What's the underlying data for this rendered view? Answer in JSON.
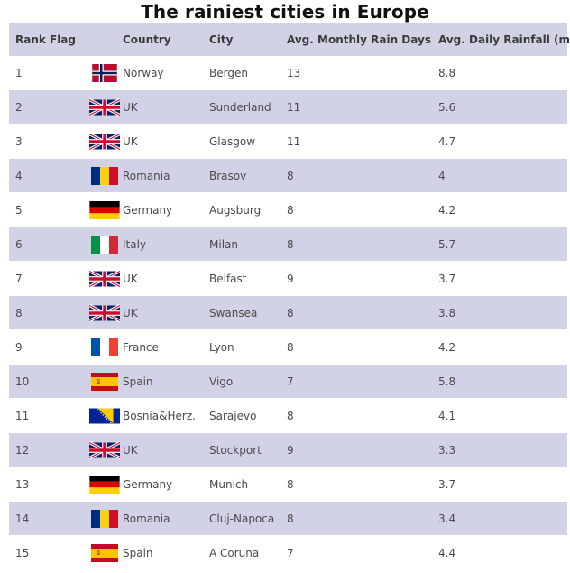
{
  "title": "The rainiest cities in Europe",
  "headers": {
    "rank": "Rank",
    "flag": "Flag",
    "country": "Country",
    "city": "City",
    "days": "Avg. Monthly Rain Days",
    "rainfall": "Avg. Daily Rainfall (mm)"
  },
  "colors": {
    "header_bg": "#d2d2e7",
    "stripe_bg": "#d2d2e7",
    "row_bg": "#ffffff",
    "title": "#111111"
  },
  "rows": [
    {
      "rank": "1",
      "flag": "norway-flag-icon",
      "country": "Norway",
      "city": "Bergen",
      "days": "13",
      "rainfall": "8.8"
    },
    {
      "rank": "2",
      "flag": "uk-flag-icon",
      "country": "UK",
      "city": "Sunderland",
      "days": "11",
      "rainfall": "5.6"
    },
    {
      "rank": "3",
      "flag": "uk-flag-icon",
      "country": "UK",
      "city": "Glasgow",
      "days": "11",
      "rainfall": "4.7"
    },
    {
      "rank": "4",
      "flag": "romania-flag-icon",
      "country": "Romania",
      "city": "Brasov",
      "days": "8",
      "rainfall": "4"
    },
    {
      "rank": "5",
      "flag": "germany-flag-icon",
      "country": "Germany",
      "city": "Augsburg",
      "days": "8",
      "rainfall": "4.2"
    },
    {
      "rank": "6",
      "flag": "italy-flag-icon",
      "country": "Italy",
      "city": "Milan",
      "days": "8",
      "rainfall": "5.7"
    },
    {
      "rank": "7",
      "flag": "uk-flag-icon",
      "country": "UK",
      "city": "Belfast",
      "days": "9",
      "rainfall": "3.7"
    },
    {
      "rank": "8",
      "flag": "uk-flag-icon",
      "country": "UK",
      "city": "Swansea",
      "days": "8",
      "rainfall": "3.8"
    },
    {
      "rank": "9",
      "flag": "france-flag-icon",
      "country": "France",
      "city": "Lyon",
      "days": "8",
      "rainfall": "4.2"
    },
    {
      "rank": "10",
      "flag": "spain-flag-icon",
      "country": "Spain",
      "city": "Vigo",
      "days": "7",
      "rainfall": "5.8"
    },
    {
      "rank": "11",
      "flag": "bosnia-flag-icon",
      "country": "Bosnia&Herz.",
      "city": "Sarajevo",
      "days": "8",
      "rainfall": "4.1"
    },
    {
      "rank": "12",
      "flag": "uk-flag-icon",
      "country": "UK",
      "city": "Stockport",
      "days": "9",
      "rainfall": "3.3"
    },
    {
      "rank": "13",
      "flag": "germany-flag-icon",
      "country": "Germany",
      "city": "Munich",
      "days": "8",
      "rainfall": "3.7"
    },
    {
      "rank": "14",
      "flag": "romania-flag-icon",
      "country": "Romania",
      "city": "Cluj-Napoca",
      "days": "8",
      "rainfall": "3.4"
    },
    {
      "rank": "15",
      "flag": "spain-flag-icon",
      "country": "Spain",
      "city": "A Coruna",
      "days": "7",
      "rainfall": "4.4"
    }
  ]
}
